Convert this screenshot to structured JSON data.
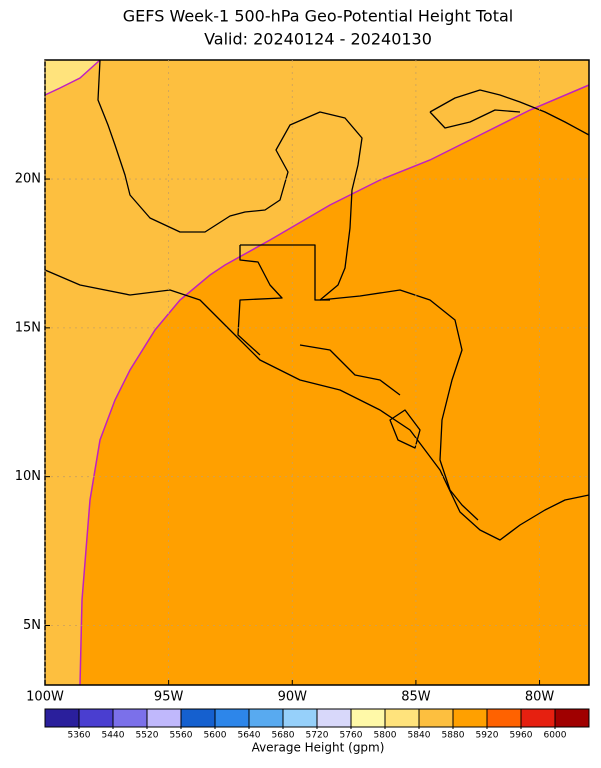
{
  "map": {
    "title": "GEFS Week-1 500-hPa Geo-Potential Height Total",
    "subtitle": "Valid: 20240124 - 20240130",
    "lon_range": [
      -100,
      -78
    ],
    "lat_range": [
      3,
      24
    ],
    "lon_ticks": [
      {
        "value": -100,
        "label": "100W"
      },
      {
        "value": -95,
        "label": "95W"
      },
      {
        "value": -90,
        "label": "90W"
      },
      {
        "value": -85,
        "label": "85W"
      },
      {
        "value": -80,
        "label": "80W"
      }
    ],
    "lat_ticks": [
      {
        "value": 20,
        "label": "20N"
      },
      {
        "value": 15,
        "label": "15N"
      },
      {
        "value": 10,
        "label": "10N"
      },
      {
        "value": 5,
        "label": "5N"
      }
    ],
    "colorbar": {
      "title": "Average Height (gpm)",
      "levels": [
        5360,
        5440,
        5520,
        5560,
        5600,
        5640,
        5680,
        5720,
        5760,
        5800,
        5840,
        5880,
        5920,
        5960,
        6000
      ],
      "colors": [
        "#2a1f9c",
        "#4a3ed0",
        "#7b70ea",
        "#c0b8fc",
        "#1560cf",
        "#2d86ea",
        "#58aaf0",
        "#96d0fa",
        "#d8d8fa",
        "#fff9a8",
        "#ffe37c",
        "#fdbf3f",
        "#ffa000",
        "#ff6200",
        "#e62010",
        "#a00000"
      ]
    }
  }
}
